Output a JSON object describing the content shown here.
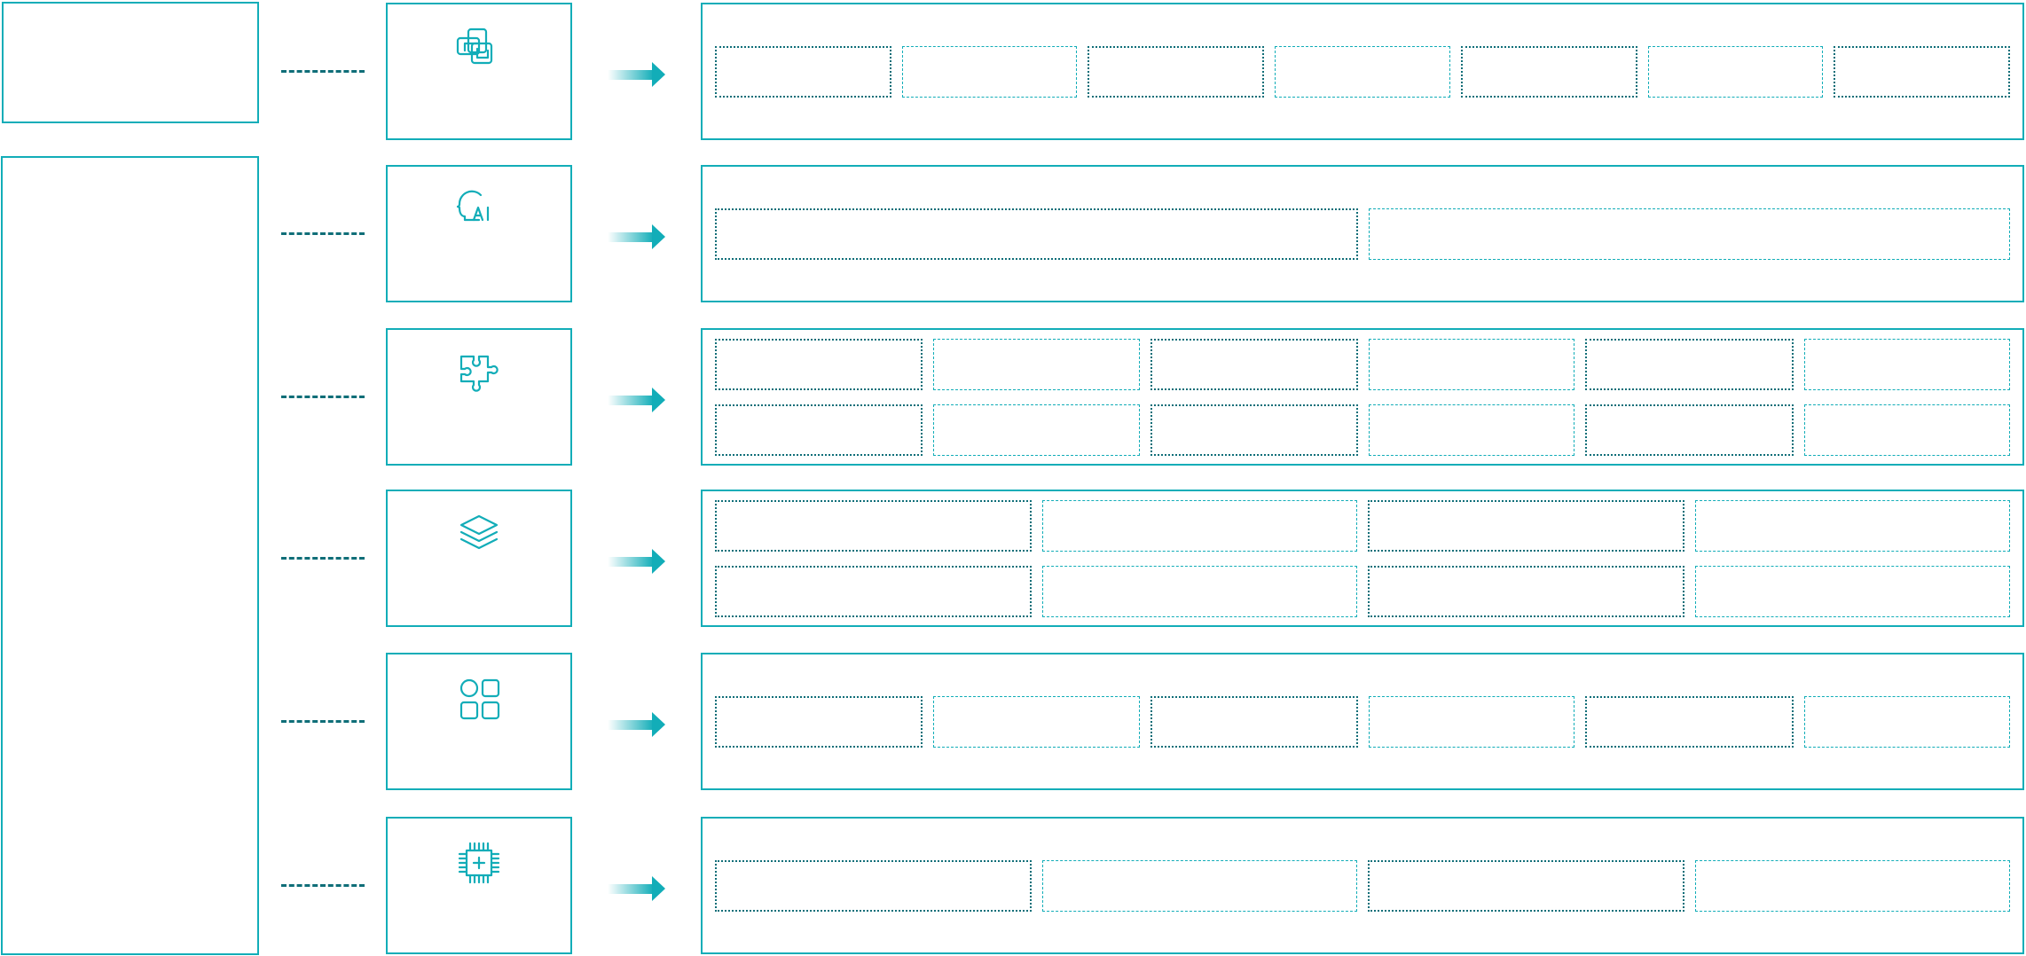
{
  "colors": {
    "accent": "#12adb8",
    "connector": "#0f6e78"
  },
  "rows": [
    {
      "icon": "overlapping-squares-icon",
      "cell_rows": [
        7
      ]
    },
    {
      "icon": "ai-head-icon",
      "cell_rows": [
        2
      ]
    },
    {
      "icon": "puzzle-piece-icon",
      "cell_rows": [
        6,
        6
      ]
    },
    {
      "icon": "layers-icon",
      "cell_rows": [
        4,
        4
      ]
    },
    {
      "icon": "apps-grid-icon",
      "cell_rows": [
        6
      ]
    },
    {
      "icon": "cpu-chip-icon",
      "cell_rows": [
        4
      ]
    }
  ]
}
